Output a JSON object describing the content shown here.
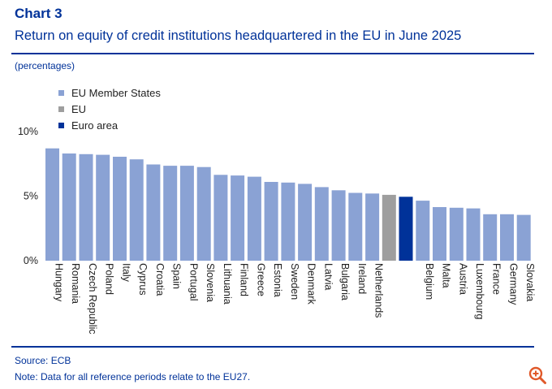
{
  "header": {
    "label": "Chart 3",
    "title": "Return on equity of credit institutions headquartered in the EU in June 2025"
  },
  "units": "(percentages)",
  "legend": [
    {
      "label": "EU Member States",
      "color": "#8aa2d4"
    },
    {
      "label": "EU",
      "color": "#9e9e9e"
    },
    {
      "label": "Euro area",
      "color": "#003299"
    }
  ],
  "chart_data": {
    "type": "bar",
    "categories": [
      "Hungary",
      "Romania",
      "Czech Republic",
      "Poland",
      "Italy",
      "Cyprus",
      "Croatia",
      "Spain",
      "Portugal",
      "Slovenia",
      "Lithuania",
      "Finland",
      "Greece",
      "Estonia",
      "Sweden",
      "Denmark",
      "Latvia",
      "Bulgaria",
      "Ireland",
      "Netherlands",
      "EU",
      "Euro area",
      "Belgium",
      "Malta",
      "Austria",
      "Luxembourg",
      "France",
      "Germany",
      "Slovakia"
    ],
    "tick_labels": [
      "Hungary",
      "Romania",
      "Czech Republic",
      "Poland",
      "Italy",
      "Cyprus",
      "Croatia",
      "Spain",
      "Portugal",
      "Slovenia",
      "Lithuania",
      "Finland",
      "Greece",
      "Estonia",
      "Sweden",
      "Denmark",
      "Latvia",
      "Bulgaria",
      "Ireland",
      "Netherlands",
      "",
      "",
      "Belgium",
      "Malta",
      "Austria",
      "Luxembourg",
      "France",
      "Germany",
      "Slovakia"
    ],
    "groups": [
      "ms",
      "ms",
      "ms",
      "ms",
      "ms",
      "ms",
      "ms",
      "ms",
      "ms",
      "ms",
      "ms",
      "ms",
      "ms",
      "ms",
      "ms",
      "ms",
      "ms",
      "ms",
      "ms",
      "ms",
      "eu",
      "ea",
      "ms",
      "ms",
      "ms",
      "ms",
      "ms",
      "ms",
      "ms"
    ],
    "values": [
      8.7,
      8.3,
      8.25,
      8.2,
      8.05,
      7.85,
      7.45,
      7.35,
      7.35,
      7.25,
      6.65,
      6.6,
      6.5,
      6.1,
      6.05,
      5.95,
      5.7,
      5.45,
      5.25,
      5.2,
      5.1,
      4.95,
      4.65,
      4.15,
      4.1,
      4.05,
      3.6,
      3.6,
      3.55
    ],
    "ylim": [
      0,
      10
    ],
    "yticks": [
      "0%",
      "5%",
      "10%"
    ],
    "ytick_values": [
      0,
      5,
      10
    ]
  },
  "footer": {
    "source": "Source: ECB",
    "note": "Note: Data for all reference periods relate to the EU27."
  },
  "icons": {
    "zoom": "zoom-in-icon"
  }
}
